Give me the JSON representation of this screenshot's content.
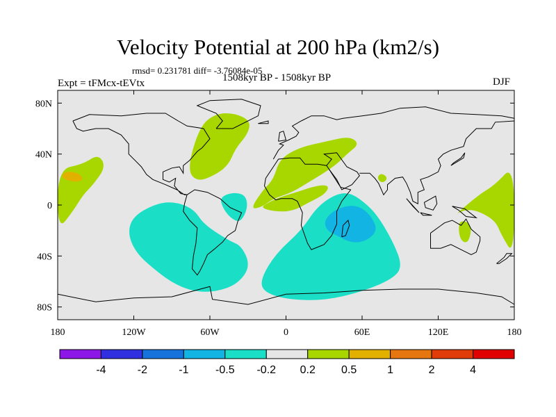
{
  "chart_data": {
    "type": "heatmap",
    "title": "Velocity Potential at 200 hPa (km2/s)",
    "stats_text": "rmsd= 0.231781 diff= -3.76084e-05",
    "period_text": "1508kyr BP - 1508kyr BP",
    "left_label": "Expt = tFMcx-tEVtx",
    "right_label": "DJF",
    "x_range": [
      -180,
      180
    ],
    "y_range": [
      -90,
      90
    ],
    "x_ticks": [
      {
        "value": -180,
        "label": "180"
      },
      {
        "value": -120,
        "label": "120W"
      },
      {
        "value": -60,
        "label": "60W"
      },
      {
        "value": 0,
        "label": "0"
      },
      {
        "value": 60,
        "label": "60E"
      },
      {
        "value": 120,
        "label": "120E"
      },
      {
        "value": 180,
        "label": "180"
      }
    ],
    "y_ticks": [
      {
        "value": 80,
        "label": "80N"
      },
      {
        "value": 40,
        "label": "40N"
      },
      {
        "value": 0,
        "label": "0"
      },
      {
        "value": -40,
        "label": "40S"
      },
      {
        "value": -80,
        "label": "80S"
      }
    ],
    "colorbar": {
      "colors": [
        "#8c17e6",
        "#3030e0",
        "#1673dc",
        "#12b4e3",
        "#1adfc6",
        "#e6e6e6",
        "#a8d700",
        "#e2b100",
        "#e6760f",
        "#e03c0a",
        "#e00000"
      ],
      "labels": [
        "-4",
        "-2",
        "-1",
        "-0.5",
        "-0.2",
        "0.2",
        "0.5",
        "1",
        "2",
        "4"
      ]
    },
    "regions": [
      {
        "level": "0.2 to 0.5",
        "color": "#a8d700",
        "points": [
          [
            -180,
            28
          ],
          [
            -160,
            32
          ],
          [
            -148,
            40
          ],
          [
            -142,
            30
          ],
          [
            -152,
            16
          ],
          [
            -160,
            8
          ],
          [
            -168,
            -5
          ],
          [
            -180,
            -20
          ]
        ]
      },
      {
        "level": "0.5 to 1",
        "color": "#e2b100",
        "points": [
          [
            -177,
            22
          ],
          [
            -172,
            19
          ],
          [
            -162,
            18
          ],
          [
            -160,
            22
          ],
          [
            -166,
            26
          ],
          [
            -175,
            26
          ]
        ]
      },
      {
        "level": "0.2 to 0.5",
        "color": "#a8d700",
        "points": [
          [
            -78,
            28
          ],
          [
            -68,
            62
          ],
          [
            -55,
            72
          ],
          [
            -40,
            72
          ],
          [
            -28,
            66
          ],
          [
            -30,
            56
          ],
          [
            -40,
            44
          ],
          [
            -45,
            32
          ],
          [
            -55,
            24
          ],
          [
            -70,
            18
          ]
        ]
      },
      {
        "level": "0.2 to 0.5",
        "color": "#a8d700",
        "points": [
          [
            -28,
            -3
          ],
          [
            -18,
            12
          ],
          [
            -10,
            20
          ],
          [
            -5,
            36
          ],
          [
            10,
            45
          ],
          [
            32,
            50
          ],
          [
            50,
            54
          ],
          [
            58,
            48
          ],
          [
            48,
            40
          ],
          [
            40,
            32
          ],
          [
            28,
            24
          ],
          [
            18,
            18
          ],
          [
            5,
            10
          ],
          [
            -10,
            5
          ],
          [
            -20,
            -2
          ]
        ]
      },
      {
        "level": "0.2 to 0.5",
        "color": "#a8d700",
        "points": [
          [
            -20,
            -2
          ],
          [
            -10,
            -5
          ],
          [
            5,
            -5
          ],
          [
            18,
            2
          ],
          [
            30,
            8
          ],
          [
            34,
            14
          ],
          [
            30,
            16
          ],
          [
            20,
            14
          ],
          [
            8,
            10
          ],
          [
            -5,
            6
          ],
          [
            -14,
            2
          ]
        ]
      },
      {
        "level": "0.2 to 0.5",
        "color": "#a8d700",
        "points": [
          [
            72,
            22
          ],
          [
            75,
            25
          ],
          [
            80,
            22
          ],
          [
            78,
            18
          ],
          [
            74,
            18
          ]
        ]
      },
      {
        "level": "0.2 to 0.5",
        "color": "#a8d700",
        "points": [
          [
            133,
            -8
          ],
          [
            152,
            8
          ],
          [
            165,
            16
          ],
          [
            180,
            32
          ],
          [
            180,
            -40
          ],
          [
            170,
            -24
          ],
          [
            165,
            -12
          ],
          [
            150,
            -4
          ],
          [
            140,
            -4
          ]
        ]
      },
      {
        "level": "0.2 to 0.5",
        "color": "#a8d700",
        "points": [
          [
            137,
            -12
          ],
          [
            145,
            -14
          ],
          [
            146,
            -22
          ],
          [
            143,
            -30
          ],
          [
            138,
            -28
          ],
          [
            136,
            -20
          ]
        ]
      },
      {
        "level": "-0.2 to -0.5",
        "color": "#1adfc6",
        "points": [
          [
            -120,
            -8
          ],
          [
            -100,
            2
          ],
          [
            -85,
            2
          ],
          [
            -72,
            -4
          ],
          [
            -65,
            -15
          ],
          [
            -45,
            -28
          ],
          [
            -35,
            -32
          ],
          [
            -28,
            -48
          ],
          [
            -38,
            -62
          ],
          [
            -55,
            -68
          ],
          [
            -72,
            -68
          ],
          [
            -88,
            -62
          ],
          [
            -102,
            -52
          ],
          [
            -118,
            -38
          ],
          [
            -125,
            -22
          ]
        ]
      },
      {
        "level": "-0.2 to -0.5",
        "color": "#1adfc6",
        "points": [
          [
            -52,
            6
          ],
          [
            -42,
            10
          ],
          [
            -32,
            8
          ],
          [
            -30,
            -2
          ],
          [
            -36,
            -14
          ],
          [
            -44,
            -10
          ],
          [
            -50,
            -2
          ]
        ]
      },
      {
        "level": "-0.2 to -0.5",
        "color": "#1adfc6",
        "points": [
          [
            -20,
            -58
          ],
          [
            -8,
            -38
          ],
          [
            12,
            -20
          ],
          [
            24,
            -2
          ],
          [
            38,
            8
          ],
          [
            50,
            10
          ],
          [
            62,
            2
          ],
          [
            72,
            -8
          ],
          [
            84,
            -28
          ],
          [
            92,
            -48
          ],
          [
            84,
            -58
          ],
          [
            60,
            -68
          ],
          [
            30,
            -75
          ],
          [
            0,
            -74
          ],
          [
            -18,
            -68
          ]
        ]
      },
      {
        "level": "-0.5 to -1",
        "color": "#12b4e3",
        "points": [
          [
            30,
            -12
          ],
          [
            38,
            -4
          ],
          [
            50,
            0
          ],
          [
            60,
            -2
          ],
          [
            68,
            -10
          ],
          [
            72,
            -20
          ],
          [
            64,
            -28
          ],
          [
            52,
            -30
          ],
          [
            40,
            -24
          ],
          [
            32,
            -20
          ]
        ]
      }
    ]
  }
}
